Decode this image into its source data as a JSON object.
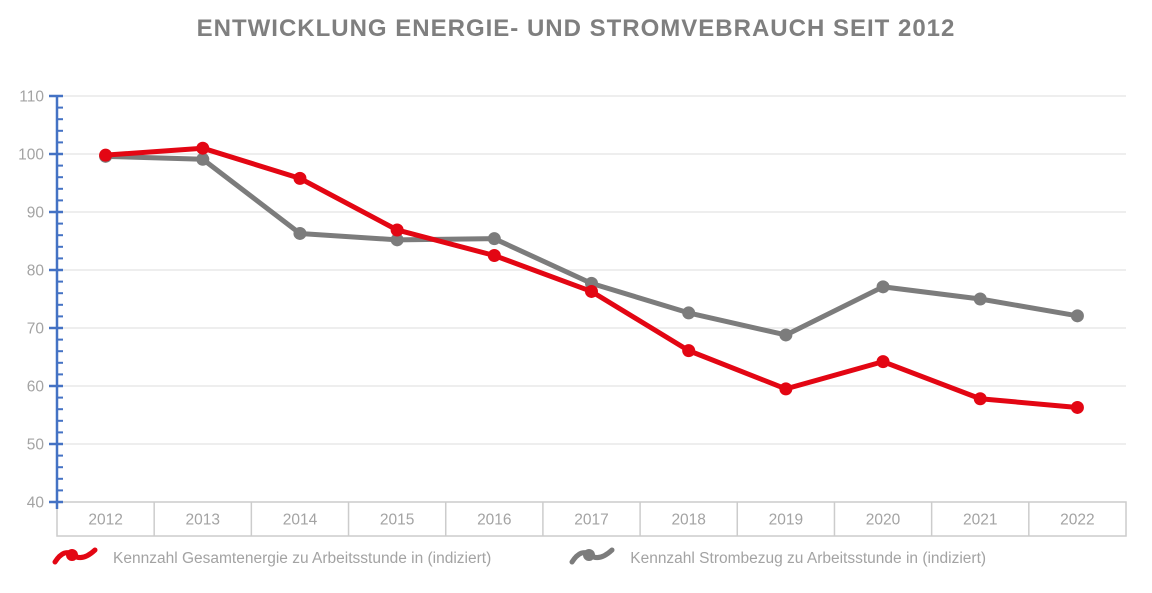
{
  "title": "ENTWICKLUNG ENERGIE- UND STROMVEBRAUCH SEIT 2012",
  "chart_data": {
    "type": "line",
    "categories": [
      "2012",
      "2013",
      "2014",
      "2015",
      "2016",
      "2017",
      "2018",
      "2019",
      "2020",
      "2021",
      "2022"
    ],
    "series": [
      {
        "name": "Kennzahl Gesamtenergie zu Arbeitsstunde in (indiziert)",
        "color": "#e30613",
        "values": [
          99.8,
          101.0,
          95.8,
          86.9,
          82.5,
          76.3,
          66.1,
          59.5,
          64.2,
          57.8,
          56.3
        ]
      },
      {
        "name": "Kennzahl Strombezug zu Arbeitsstunde in (indiziert)",
        "color": "#7c7c7c",
        "values": [
          99.6,
          99.1,
          86.3,
          85.2,
          85.4,
          77.7,
          72.6,
          68.8,
          77.1,
          75.0,
          72.1
        ]
      }
    ],
    "xlabel": "",
    "ylabel": "",
    "ylim": [
      40,
      110
    ],
    "yticks": [
      40,
      50,
      60,
      70,
      80,
      90,
      100,
      110
    ],
    "y_major_step": 10,
    "y_minor_step": 2,
    "grid": true,
    "legend_position": "bottom"
  },
  "colors": {
    "title": "#7f7f7f",
    "axis": "#4472c4",
    "grid": "#e8e8e8",
    "band_border": "#cccccc",
    "tick_label": "#a3a3a3",
    "legend_text": "#a3a3a3",
    "background": "#ffffff"
  }
}
